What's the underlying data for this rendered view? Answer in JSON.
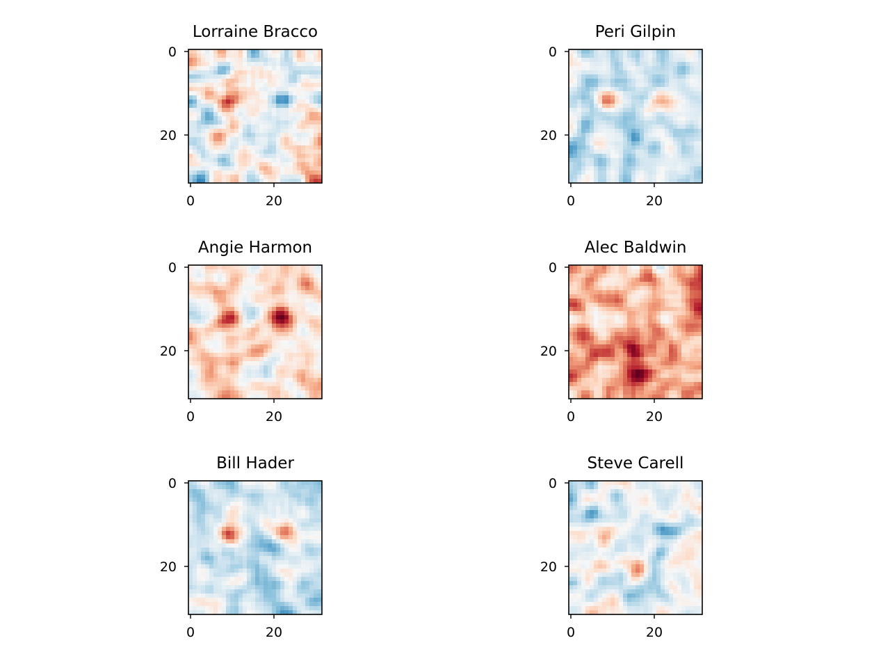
{
  "chart_data": [
    {
      "type": "heatmap",
      "title": "Lorraine Bracco",
      "colormap": "RdBu",
      "grid_size": [
        32,
        32
      ],
      "xlim": [
        -0.5,
        31.5
      ],
      "ylim": [
        31.5,
        -0.5
      ],
      "xticks": [
        "0",
        "20"
      ],
      "yticks": [
        "0",
        "20"
      ],
      "dominant_tone": "mixed",
      "notes": "red-blue noise, dark blue left eye, red brow bands"
    },
    {
      "type": "heatmap",
      "title": "Peri Gilpin",
      "colormap": "RdBu",
      "grid_size": [
        32,
        32
      ],
      "xlim": [
        -0.5,
        31.5
      ],
      "ylim": [
        31.5,
        -0.5
      ],
      "xticks": [
        "0",
        "20"
      ],
      "yticks": [
        "0",
        "20"
      ],
      "dominant_tone": "blue",
      "notes": "mostly blue, red eye spots"
    },
    {
      "type": "heatmap",
      "title": "Angie Harmon",
      "colormap": "RdBu",
      "grid_size": [
        32,
        32
      ],
      "xlim": [
        -0.5,
        31.5
      ],
      "ylim": [
        31.5,
        -0.5
      ],
      "xticks": [
        "0",
        "20"
      ],
      "yticks": [
        "0",
        "20"
      ],
      "dominant_tone": "red",
      "notes": "mostly light red, dark red eyes with blue pupils"
    },
    {
      "type": "heatmap",
      "title": "Alec Baldwin",
      "colormap": "RdBu",
      "grid_size": [
        32,
        32
      ],
      "xlim": [
        -0.5,
        31.5
      ],
      "ylim": [
        31.5,
        -0.5
      ],
      "xticks": [
        "0",
        "20"
      ],
      "yticks": [
        "0",
        "20"
      ],
      "dominant_tone": "strong-red",
      "notes": "strongly red, blue eye regions, red mouth arc"
    },
    {
      "type": "heatmap",
      "title": "Bill Hader",
      "colormap": "RdBu",
      "grid_size": [
        32,
        32
      ],
      "xlim": [
        -0.5,
        31.5
      ],
      "ylim": [
        31.5,
        -0.5
      ],
      "xticks": [
        "0",
        "20"
      ],
      "yticks": [
        "0",
        "20"
      ],
      "dominant_tone": "blue",
      "notes": "mostly blue, red spots between eyes and at nose"
    },
    {
      "type": "heatmap",
      "title": "Steve Carell",
      "colormap": "RdBu",
      "grid_size": [
        32,
        32
      ],
      "xlim": [
        -0.5,
        31.5
      ],
      "ylim": [
        31.5,
        -0.5
      ],
      "xticks": [
        "0",
        "20"
      ],
      "yticks": [
        "0",
        "20"
      ],
      "dominant_tone": "mixed-blue",
      "notes": "light blue/pale, blue eye band, red nose streak"
    }
  ]
}
